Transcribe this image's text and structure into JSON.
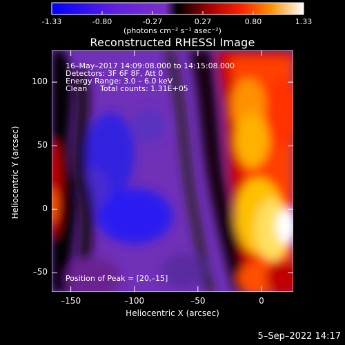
{
  "colorbar": {
    "tick_labels": [
      "-1.33",
      "-0.80",
      "-0.27",
      "0.27",
      "0.80",
      "1.33"
    ],
    "units": "(photons cm⁻² s⁻¹ asec⁻²)",
    "range": [
      -1.33,
      1.33
    ]
  },
  "title": "Reconstructed RHESSI Image",
  "annotations": {
    "time_range": "16–May–2017 14:09:08.000 to 14:15:08.000",
    "detectors": "Detectors: 3F 6F 8F, Att 0",
    "energy": "Energy Range: 3.0 – 6.0 keV",
    "method_label": "Clean",
    "counts": "Total counts: 1.31E+05",
    "peak": "Position of Peak = [20,–15]"
  },
  "axes": {
    "xlabel": "Heliocentric X (arcsec)",
    "ylabel": "Heliocentric Y (arcsec)",
    "x_ticks": [
      "–150",
      "–100",
      "–50",
      "0"
    ],
    "y_ticks": [
      "100",
      "50",
      "0",
      "–50"
    ],
    "xlim": [
      -165,
      25
    ],
    "ylim": [
      -65,
      125
    ]
  },
  "timestamp": "5–Sep–2022 14:17",
  "colors": {
    "background": "#000000",
    "low": "#0000ff",
    "mid_low": "#8040c0",
    "high": "#ff0000",
    "peak": "#ffffff"
  }
}
